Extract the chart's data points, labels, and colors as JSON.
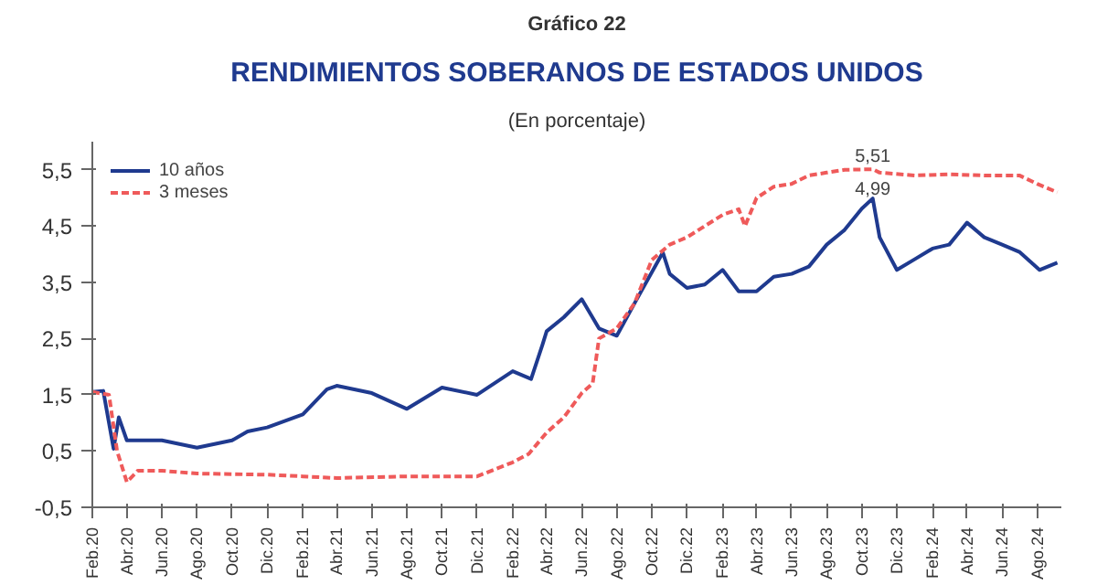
{
  "chart_data": {
    "type": "line",
    "annotations": [
      "Gráfico 22",
      {
        "text": "5,51",
        "x": "2023-10-20",
        "y": 5.51
      },
      {
        "text": "4,99",
        "x": "2023-10-20",
        "y": 4.99
      }
    ],
    "title": "RENDIMIENTOS SOBERANOS DE ESTADOS UNIDOS",
    "subtitle": "(En porcentaje)",
    "xlim": [
      "2020-02-01",
      "2024-09-12"
    ],
    "ylim": [
      -0.5,
      6.0
    ],
    "yticks": [
      {
        "value": -0.5,
        "label": "-0,5"
      },
      {
        "value": 0.5,
        "label": "0,5"
      },
      {
        "value": 1.5,
        "label": "1,5"
      },
      {
        "value": 2.5,
        "label": "2,5"
      },
      {
        "value": 3.5,
        "label": "3,5"
      },
      {
        "value": 4.5,
        "label": "4,5"
      },
      {
        "value": 5.5,
        "label": "5,5"
      }
    ],
    "xticks": [
      {
        "value": "2020-02",
        "label": "Feb.20"
      },
      {
        "value": "2020-04",
        "label": "Abr.20"
      },
      {
        "value": "2020-06",
        "label": "Jun.20"
      },
      {
        "value": "2020-08",
        "label": "Ago.20"
      },
      {
        "value": "2020-10",
        "label": "Oct.20"
      },
      {
        "value": "2020-12",
        "label": "Dic.20"
      },
      {
        "value": "2021-02",
        "label": "Feb.21"
      },
      {
        "value": "2021-04",
        "label": "Abr.21"
      },
      {
        "value": "2021-06",
        "label": "Jun.21"
      },
      {
        "value": "2021-08",
        "label": "Ago.21"
      },
      {
        "value": "2021-10",
        "label": "Oct.21"
      },
      {
        "value": "2021-12",
        "label": "Dic.21"
      },
      {
        "value": "2022-02",
        "label": "Feb.22"
      },
      {
        "value": "2022-04",
        "label": "Abr.22"
      },
      {
        "value": "2022-06",
        "label": "Jun.22"
      },
      {
        "value": "2022-08",
        "label": "Ago.22"
      },
      {
        "value": "2022-10",
        "label": "Oct.22"
      },
      {
        "value": "2022-12",
        "label": "Dic.22"
      },
      {
        "value": "2023-02",
        "label": "Feb.23"
      },
      {
        "value": "2023-04",
        "label": "Abr.23"
      },
      {
        "value": "2023-06",
        "label": "Jun.23"
      },
      {
        "value": "2023-08",
        "label": "Ago.23"
      },
      {
        "value": "2023-10",
        "label": "Oct.23"
      },
      {
        "value": "2023-12",
        "label": "Dic.23"
      },
      {
        "value": "2024-02",
        "label": "Feb.24"
      },
      {
        "value": "2024-04",
        "label": "Abr.24"
      },
      {
        "value": "2024-06",
        "label": "Jun.24"
      },
      {
        "value": "2024-08",
        "label": "Ago.24"
      }
    ],
    "grid": false,
    "legend": "top left",
    "series": [
      {
        "name": "10 años",
        "color": "#1f3a8f",
        "line_style": "solid",
        "x": [
          "2020-02-01",
          "2020-02-20",
          "2020-03-09",
          "2020-03-18",
          "2020-04-01",
          "2020-06-01",
          "2020-08-01",
          "2020-10-01",
          "2020-10-28",
          "2020-12-01",
          "2021-02-01",
          "2021-03-15",
          "2021-04-01",
          "2021-06-01",
          "2021-08-01",
          "2021-10-01",
          "2021-12-01",
          "2022-02-01",
          "2022-03-05",
          "2022-03-25",
          "2022-04-01",
          "2022-05-01",
          "2022-06-01",
          "2022-07-01",
          "2022-08-01",
          "2022-09-01",
          "2022-10-20",
          "2022-11-01",
          "2022-12-01",
          "2023-01-01",
          "2023-02-01",
          "2023-03-01",
          "2023-04-01",
          "2023-05-01",
          "2023-06-01",
          "2023-07-01",
          "2023-08-01",
          "2023-09-01",
          "2023-10-01",
          "2023-10-20",
          "2023-11-01",
          "2023-12-01",
          "2024-01-01",
          "2024-02-01",
          "2024-03-01",
          "2024-04-01",
          "2024-05-01",
          "2024-06-01",
          "2024-07-01",
          "2024-08-05",
          "2024-09-05"
        ],
        "values": [
          1.55,
          1.57,
          0.54,
          1.1,
          0.69,
          0.69,
          0.56,
          0.69,
          0.85,
          0.92,
          1.15,
          1.6,
          1.66,
          1.53,
          1.25,
          1.63,
          1.5,
          1.92,
          1.78,
          2.4,
          2.63,
          2.88,
          3.2,
          2.68,
          2.55,
          3.13,
          4.03,
          3.65,
          3.4,
          3.46,
          3.72,
          3.34,
          3.34,
          3.6,
          3.65,
          3.78,
          4.17,
          4.43,
          4.81,
          4.99,
          4.3,
          3.72,
          3.91,
          4.1,
          4.17,
          4.56,
          4.3,
          4.17,
          4.04,
          3.72,
          3.85
        ]
      },
      {
        "name": "3 meses",
        "color": "#ef5a5a",
        "line_style": "dashed",
        "x": [
          "2020-02-01",
          "2020-03-01",
          "2020-03-15",
          "2020-04-01",
          "2020-04-20",
          "2020-06-01",
          "2020-08-01",
          "2020-12-01",
          "2021-02-01",
          "2021-04-01",
          "2021-08-01",
          "2021-12-01",
          "2022-02-01",
          "2022-03-01",
          "2022-04-01",
          "2022-05-01",
          "2022-06-01",
          "2022-06-20",
          "2022-07-01",
          "2022-08-01",
          "2022-09-01",
          "2022-10-01",
          "2022-11-01",
          "2022-12-01",
          "2023-01-01",
          "2023-02-01",
          "2023-03-01",
          "2023-03-12",
          "2023-04-01",
          "2023-05-01",
          "2023-06-01",
          "2023-07-01",
          "2023-08-01",
          "2023-09-01",
          "2023-10-20",
          "2023-11-01",
          "2024-01-01",
          "2024-03-01",
          "2024-05-01",
          "2024-07-01",
          "2024-08-01",
          "2024-09-05"
        ],
        "values": [
          1.55,
          1.5,
          0.5,
          -0.05,
          0.15,
          0.15,
          0.1,
          0.08,
          0.05,
          0.02,
          0.05,
          0.05,
          0.3,
          0.45,
          0.83,
          1.1,
          1.53,
          1.7,
          2.5,
          2.68,
          3.13,
          3.9,
          4.17,
          4.3,
          4.5,
          4.7,
          4.8,
          4.5,
          5.0,
          5.2,
          5.25,
          5.4,
          5.45,
          5.5,
          5.51,
          5.45,
          5.4,
          5.42,
          5.4,
          5.4,
          5.25,
          5.1
        ]
      }
    ]
  }
}
